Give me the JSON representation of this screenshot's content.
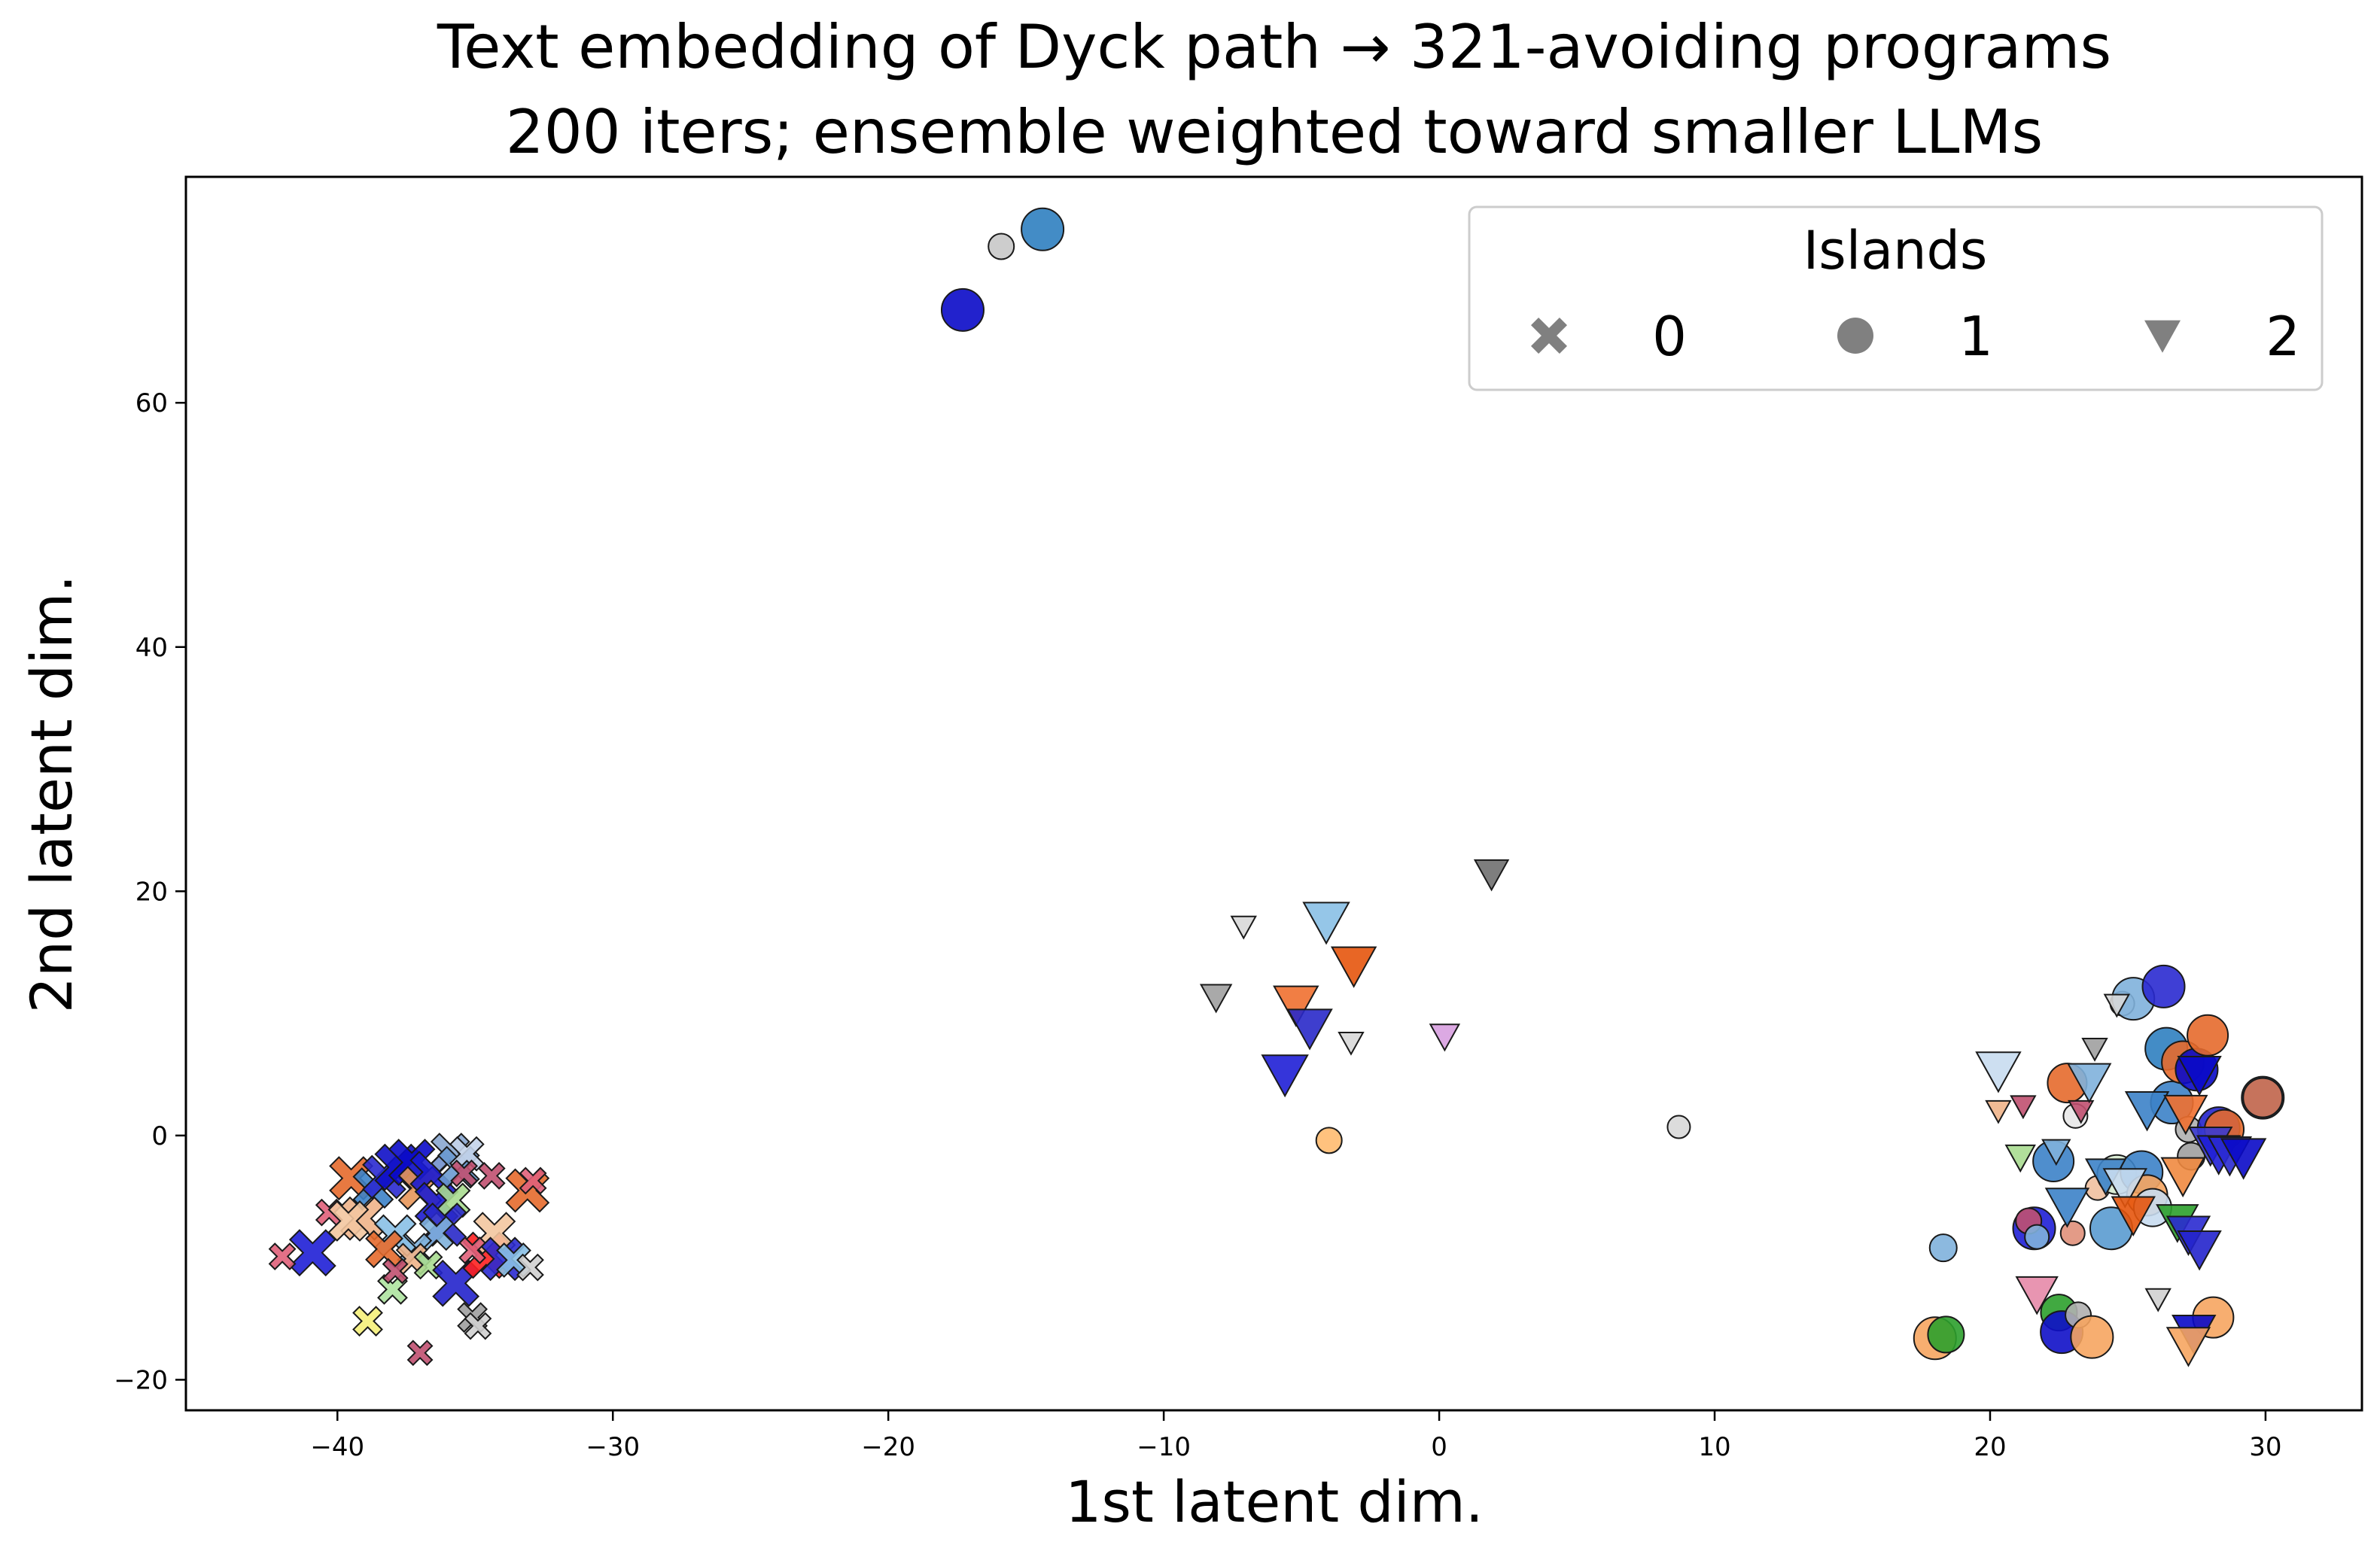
{
  "chart_data": {
    "type": "scatter",
    "title": "Text embedding of Dyck path → 321-avoiding programs",
    "subtitle": "200 iters; ensemble weighted toward smaller LLMs",
    "xlabel": "1st latent dim.",
    "ylabel": "2nd latent dim.",
    "xlim": [
      -45.5,
      33.5
    ],
    "ylim": [
      -22.5,
      78.5
    ],
    "xticks": [
      -40,
      -30,
      -20,
      -10,
      0,
      10,
      20,
      30
    ],
    "yticks": [
      -20,
      0,
      20,
      40,
      60
    ],
    "xtick_labels": [
      "−40",
      "−30",
      "−20",
      "−10",
      "0",
      "10",
      "20",
      "30"
    ],
    "ytick_labels": [
      "−20",
      "0",
      "20",
      "40",
      "60"
    ],
    "grid": false,
    "legend": {
      "title": "Islands",
      "placement": "top-right",
      "entries": [
        {
          "label": "0",
          "marker": "x",
          "color": "#808080"
        },
        {
          "label": "1",
          "marker": "circle",
          "color": "#808080"
        },
        {
          "label": "2",
          "marker": "triangle-down",
          "color": "#808080"
        }
      ]
    },
    "series": [
      {
        "island": "0",
        "marker": "x",
        "points": [
          {
            "x": -40.9,
            "y": -9.6,
            "s": 1.0,
            "c": "#1f1fd6"
          },
          {
            "x": -42.0,
            "y": -9.9,
            "s": 0.35,
            "c": "#e0607a"
          },
          {
            "x": -39.5,
            "y": -3.5,
            "s": 0.9,
            "c": "#e66a2c"
          },
          {
            "x": -39.1,
            "y": -6.8,
            "s": 0.9,
            "c": "#f0b48a"
          },
          {
            "x": -38.7,
            "y": -4.3,
            "s": 0.8,
            "c": "#3c82c8"
          },
          {
            "x": -38.3,
            "y": -3.4,
            "s": 0.9,
            "c": "#2a2ad0"
          },
          {
            "x": -37.8,
            "y": -2.6,
            "s": 1.0,
            "c": "#1010c8"
          },
          {
            "x": -37.3,
            "y": -2.2,
            "s": 1.0,
            "c": "#0a0ac8"
          },
          {
            "x": -37.0,
            "y": -4.3,
            "s": 0.9,
            "c": "#e8975a"
          },
          {
            "x": -36.6,
            "y": -3.0,
            "s": 0.85,
            "c": "#1a1ad0"
          },
          {
            "x": -36.4,
            "y": -5.6,
            "s": 0.9,
            "c": "#1c1ccf"
          },
          {
            "x": -35.9,
            "y": -1.4,
            "s": 0.75,
            "c": "#8aa7d0"
          },
          {
            "x": -35.6,
            "y": -2.6,
            "s": 0.85,
            "c": "#6a9ad0"
          },
          {
            "x": -35.3,
            "y": -1.5,
            "s": 0.6,
            "c": "#c4d4ea"
          },
          {
            "x": -35.8,
            "y": -5.3,
            "s": 0.6,
            "c": "#a8dc90"
          },
          {
            "x": -36.1,
            "y": -7.3,
            "s": 0.9,
            "c": "#2929c9"
          },
          {
            "x": -36.4,
            "y": -8.0,
            "s": 0.6,
            "c": "#7fb1dc"
          },
          {
            "x": -37.2,
            "y": -9.4,
            "s": 0.6,
            "c": "#7fb1dc"
          },
          {
            "x": -37.9,
            "y": -8.2,
            "s": 0.85,
            "c": "#8ac0e6"
          },
          {
            "x": -38.3,
            "y": -9.3,
            "s": 0.7,
            "c": "#e66a2c"
          },
          {
            "x": -37.3,
            "y": -10.1,
            "s": 0.5,
            "c": "#f0b48a"
          },
          {
            "x": -36.7,
            "y": -10.6,
            "s": 0.4,
            "c": "#a8dc90"
          },
          {
            "x": -38.0,
            "y": -12.6,
            "s": 0.45,
            "c": "#aee3a0"
          },
          {
            "x": -38.9,
            "y": -15.2,
            "s": 0.45,
            "c": "#f5f07a"
          },
          {
            "x": -37.0,
            "y": -17.8,
            "s": 0.3,
            "c": "#c05070"
          },
          {
            "x": -37.9,
            "y": -11.1,
            "s": 0.3,
            "c": "#c05070"
          },
          {
            "x": -40.3,
            "y": -6.3,
            "s": 0.35,
            "c": "#e0607a"
          },
          {
            "x": -39.6,
            "y": -7.0,
            "s": 0.8,
            "c": "#f3c6a0"
          },
          {
            "x": -35.7,
            "y": -12.1,
            "s": 1.0,
            "c": "#2323cc"
          },
          {
            "x": -35.1,
            "y": -14.9,
            "s": 0.45,
            "c": "#a0a0a0"
          },
          {
            "x": -34.9,
            "y": -15.6,
            "s": 0.35,
            "c": "#d0d0d0"
          },
          {
            "x": -34.6,
            "y": -9.8,
            "s": 1.0,
            "c": "#ff2020"
          },
          {
            "x": -34.3,
            "y": -8.0,
            "s": 0.85,
            "c": "#f3c6a0"
          },
          {
            "x": -34.0,
            "y": -10.1,
            "s": 0.9,
            "c": "#2a2ad0"
          },
          {
            "x": -33.6,
            "y": -10.2,
            "s": 0.6,
            "c": "#8ac0e6"
          },
          {
            "x": -33.0,
            "y": -10.8,
            "s": 0.35,
            "c": "#d0d0d0"
          },
          {
            "x": -33.1,
            "y": -4.5,
            "s": 0.9,
            "c": "#e66a2c"
          },
          {
            "x": -32.9,
            "y": -3.7,
            "s": 0.35,
            "c": "#e0607a"
          },
          {
            "x": -35.1,
            "y": -9.4,
            "s": 0.35,
            "c": "#e0607a"
          },
          {
            "x": -35.4,
            "y": -3.1,
            "s": 0.35,
            "c": "#c05070"
          },
          {
            "x": -34.4,
            "y": -3.3,
            "s": 0.35,
            "c": "#c05070"
          }
        ]
      },
      {
        "island": "1",
        "marker": "circle",
        "points": [
          {
            "x": -17.3,
            "y": 67.6,
            "s": 0.9,
            "c": "#0a0ac8"
          },
          {
            "x": -15.9,
            "y": 72.8,
            "s": 0.35,
            "c": "#c8c8c8"
          },
          {
            "x": -14.4,
            "y": 74.2,
            "s": 0.9,
            "c": "#2f7fc0"
          },
          {
            "x": -4.0,
            "y": -0.4,
            "s": 0.35,
            "c": "#ffbb70"
          },
          {
            "x": 8.7,
            "y": 0.7,
            "s": 0.25,
            "c": "#d8d8d8"
          },
          {
            "x": 18.0,
            "y": -16.6,
            "s": 0.9,
            "c": "#f6a560"
          },
          {
            "x": 18.4,
            "y": -16.3,
            "s": 0.7,
            "c": "#2ca02c"
          },
          {
            "x": 18.3,
            "y": -9.2,
            "s": 0.4,
            "c": "#7fb1dc"
          },
          {
            "x": 21.6,
            "y": -7.6,
            "s": 0.9,
            "c": "#1f1fd6"
          },
          {
            "x": 21.4,
            "y": -7.0,
            "s": 0.35,
            "c": "#c05070"
          },
          {
            "x": 21.7,
            "y": -8.3,
            "s": 0.3,
            "c": "#7fb1dc"
          },
          {
            "x": 22.3,
            "y": -2.1,
            "s": 0.85,
            "c": "#3c82c8"
          },
          {
            "x": 22.8,
            "y": 4.3,
            "s": 0.8,
            "c": "#e66a2c"
          },
          {
            "x": 23.1,
            "y": 1.6,
            "s": 0.3,
            "c": "#e8e8e8"
          },
          {
            "x": 22.5,
            "y": -14.5,
            "s": 0.7,
            "c": "#2ca02c"
          },
          {
            "x": 22.6,
            "y": -16.1,
            "s": 0.9,
            "c": "#1010c8"
          },
          {
            "x": 23.2,
            "y": -14.7,
            "s": 0.35,
            "c": "#b0b0b0"
          },
          {
            "x": 23.0,
            "y": -8.0,
            "s": 0.3,
            "c": "#e0907a"
          },
          {
            "x": 23.7,
            "y": -16.5,
            "s": 0.9,
            "c": "#f6a560"
          },
          {
            "x": 23.9,
            "y": -4.3,
            "s": 0.3,
            "c": "#f0c0a0"
          },
          {
            "x": 24.4,
            "y": -7.6,
            "s": 0.9,
            "c": "#5a9bd0"
          },
          {
            "x": 24.6,
            "y": -3.2,
            "s": 0.8,
            "c": "#d6ead0"
          },
          {
            "x": 24.8,
            "y": 10.8,
            "s": 0.3,
            "c": "#d8d8d8"
          },
          {
            "x": 25.2,
            "y": 11.2,
            "s": 0.9,
            "c": "#7fb1dc"
          },
          {
            "x": 25.5,
            "y": -3.0,
            "s": 0.9,
            "c": "#3c82c8"
          },
          {
            "x": 25.7,
            "y": -4.9,
            "s": 0.85,
            "c": "#f6a560"
          },
          {
            "x": 25.9,
            "y": -5.9,
            "s": 0.75,
            "c": "#c8dcef"
          },
          {
            "x": 26.3,
            "y": 12.2,
            "s": 0.9,
            "c": "#2a2ad0"
          },
          {
            "x": 26.4,
            "y": 7.1,
            "s": 0.9,
            "c": "#2f7fc0"
          },
          {
            "x": 26.6,
            "y": 2.7,
            "s": 0.9,
            "c": "#3c82c8"
          },
          {
            "x": 27.0,
            "y": 6.0,
            "s": 0.9,
            "c": "#e66a2c"
          },
          {
            "x": 27.2,
            "y": 0.5,
            "s": 0.35,
            "c": "#b0b0b0"
          },
          {
            "x": 27.3,
            "y": -1.7,
            "s": 0.4,
            "c": "#a0a0a0"
          },
          {
            "x": 27.5,
            "y": 5.4,
            "s": 0.9,
            "c": "#0a0ac8"
          },
          {
            "x": 27.9,
            "y": 8.2,
            "s": 0.85,
            "c": "#e66a2c"
          },
          {
            "x": 28.1,
            "y": -14.9,
            "s": 0.85,
            "c": "#f6a560"
          },
          {
            "x": 28.3,
            "y": 0.6,
            "s": 0.9,
            "c": "#2323cc"
          },
          {
            "x": 28.5,
            "y": 0.5,
            "s": 0.8,
            "c": "#e66a2c"
          },
          {
            "x": 29.9,
            "y": 3.1,
            "s": 0.9,
            "c": "#2f7fc0"
          },
          {
            "x": 29.9,
            "y": 3.1,
            "s": 0.8,
            "c": "#d57050"
          }
        ]
      },
      {
        "island": "2",
        "marker": "triangle-down",
        "points": [
          {
            "x": -7.1,
            "y": 17.1,
            "s": 0.3,
            "c": "#d8d8d8"
          },
          {
            "x": -8.1,
            "y": 11.3,
            "s": 0.5,
            "c": "#a0a0a0"
          },
          {
            "x": -4.1,
            "y": 17.5,
            "s": 1.0,
            "c": "#8ac0e6"
          },
          {
            "x": -3.1,
            "y": 13.9,
            "s": 0.95,
            "c": "#e6550d"
          },
          {
            "x": -5.2,
            "y": 10.7,
            "s": 0.95,
            "c": "#ef7030"
          },
          {
            "x": -4.7,
            "y": 8.8,
            "s": 0.95,
            "c": "#2929c9"
          },
          {
            "x": -5.6,
            "y": 5.0,
            "s": 1.0,
            "c": "#1f1fd6"
          },
          {
            "x": -3.2,
            "y": 7.6,
            "s": 0.3,
            "c": "#d8d8d8"
          },
          {
            "x": 0.2,
            "y": 8.1,
            "s": 0.45,
            "c": "#d8a0e0"
          },
          {
            "x": 1.9,
            "y": 21.4,
            "s": 0.6,
            "c": "#707070"
          },
          {
            "x": 20.3,
            "y": 5.3,
            "s": 0.95,
            "c": "#c8dcef"
          },
          {
            "x": 20.3,
            "y": 2.0,
            "s": 0.3,
            "c": "#f0b48a"
          },
          {
            "x": 21.1,
            "y": -1.8,
            "s": 0.45,
            "c": "#a8dc90"
          },
          {
            "x": 21.2,
            "y": 2.4,
            "s": 0.3,
            "c": "#c05070"
          },
          {
            "x": 21.7,
            "y": -13.0,
            "s": 0.85,
            "c": "#e68aa8"
          },
          {
            "x": 22.4,
            "y": -1.3,
            "s": 0.4,
            "c": "#7fb1dc"
          },
          {
            "x": 22.8,
            "y": -5.8,
            "s": 0.9,
            "c": "#3c82c8"
          },
          {
            "x": 23.3,
            "y": 2.0,
            "s": 0.3,
            "c": "#c05070"
          },
          {
            "x": 23.6,
            "y": 4.4,
            "s": 0.9,
            "c": "#7fb1dc"
          },
          {
            "x": 23.8,
            "y": 7.1,
            "s": 0.3,
            "c": "#a0a0a0"
          },
          {
            "x": 24.2,
            "y": -3.3,
            "s": 0.8,
            "c": "#3c82c8"
          },
          {
            "x": 24.6,
            "y": 10.7,
            "s": 0.3,
            "c": "#d8d8d8"
          },
          {
            "x": 24.9,
            "y": -4.2,
            "s": 0.9,
            "c": "#c8dcef"
          },
          {
            "x": 25.2,
            "y": -6.5,
            "s": 0.9,
            "c": "#e6550d"
          },
          {
            "x": 25.7,
            "y": 2.1,
            "s": 0.9,
            "c": "#3c82c8"
          },
          {
            "x": 26.1,
            "y": -13.4,
            "s": 0.3,
            "c": "#d0d0d0"
          },
          {
            "x": 26.8,
            "y": -7.1,
            "s": 0.85,
            "c": "#2ca02c"
          },
          {
            "x": 27.0,
            "y": -3.3,
            "s": 0.9,
            "c": "#ef8a40"
          },
          {
            "x": 27.1,
            "y": 1.8,
            "s": 0.9,
            "c": "#ef7030"
          },
          {
            "x": 27.2,
            "y": -8.1,
            "s": 0.9,
            "c": "#2a2ad0"
          },
          {
            "x": 27.4,
            "y": -16.2,
            "s": 0.9,
            "c": "#0a0ac8"
          },
          {
            "x": 27.2,
            "y": -17.2,
            "s": 0.9,
            "c": "#f6a560"
          },
          {
            "x": 27.6,
            "y": 5.0,
            "s": 0.9,
            "c": "#0a0ac8"
          },
          {
            "x": 27.6,
            "y": -9.3,
            "s": 0.9,
            "c": "#2323cc"
          },
          {
            "x": 28.0,
            "y": -0.8,
            "s": 0.9,
            "c": "#3a3ad0"
          },
          {
            "x": 28.3,
            "y": -1.5,
            "s": 0.9,
            "c": "#1f1fd6"
          },
          {
            "x": 28.7,
            "y": -1.6,
            "s": 0.9,
            "c": "#2a2ad0"
          },
          {
            "x": 29.2,
            "y": -1.8,
            "s": 0.95,
            "c": "#0a0ac8"
          }
        ]
      }
    ]
  }
}
